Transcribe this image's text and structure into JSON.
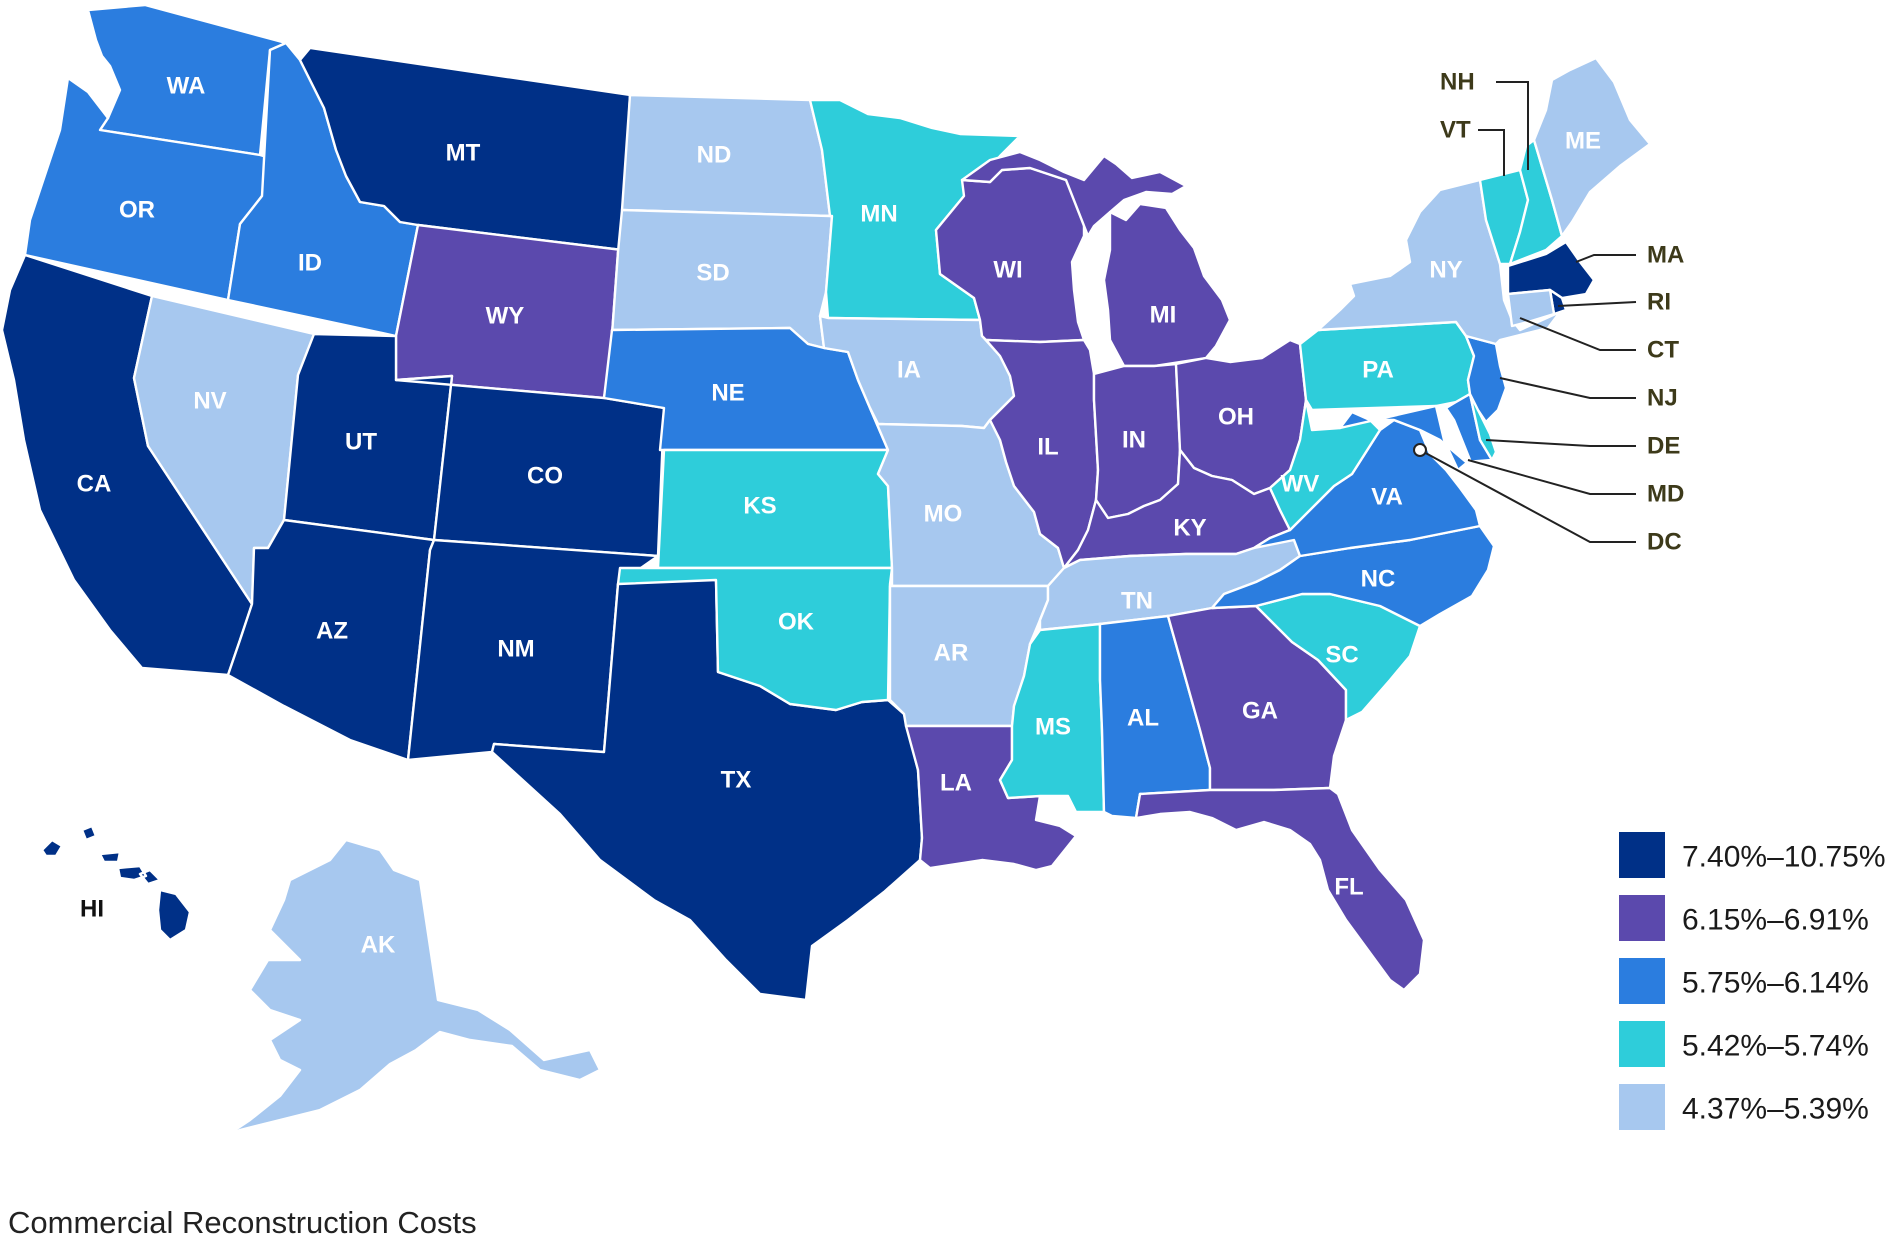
{
  "caption": "Commercial Reconstruction Costs",
  "colors": {
    "t1": "#003087",
    "t2": "#5b49ad",
    "t3": "#2b7ddf",
    "t4": "#2ecdda",
    "t5": "#a7c8ef",
    "border": "#ffffff"
  },
  "legend": [
    {
      "tier": "t1",
      "label": "7.40%–10.75%"
    },
    {
      "tier": "t2",
      "label": "6.15%–6.91%"
    },
    {
      "tier": "t3",
      "label": "5.75%–6.14%"
    },
    {
      "tier": "t4",
      "label": "5.42%–5.74%"
    },
    {
      "tier": "t5",
      "label": "4.37%–5.39%"
    }
  ],
  "states": {
    "WA": {
      "label": "WA",
      "tier": "t3"
    },
    "OR": {
      "label": "OR",
      "tier": "t3"
    },
    "CA": {
      "label": "CA",
      "tier": "t1"
    },
    "ID": {
      "label": "ID",
      "tier": "t3"
    },
    "NV": {
      "label": "NV",
      "tier": "t5"
    },
    "MT": {
      "label": "MT",
      "tier": "t1"
    },
    "WY": {
      "label": "WY",
      "tier": "t2"
    },
    "UT": {
      "label": "UT",
      "tier": "t1"
    },
    "CO": {
      "label": "CO",
      "tier": "t1"
    },
    "AZ": {
      "label": "AZ",
      "tier": "t1"
    },
    "NM": {
      "label": "NM",
      "tier": "t1"
    },
    "TX": {
      "label": "TX",
      "tier": "t1"
    },
    "ND": {
      "label": "ND",
      "tier": "t5"
    },
    "SD": {
      "label": "SD",
      "tier": "t5"
    },
    "NE": {
      "label": "NE",
      "tier": "t3"
    },
    "KS": {
      "label": "KS",
      "tier": "t4"
    },
    "OK": {
      "label": "OK",
      "tier": "t4"
    },
    "MN": {
      "label": "MN",
      "tier": "t4"
    },
    "IA": {
      "label": "IA",
      "tier": "t5"
    },
    "MO": {
      "label": "MO",
      "tier": "t5"
    },
    "AR": {
      "label": "AR",
      "tier": "t5"
    },
    "LA": {
      "label": "LA",
      "tier": "t2"
    },
    "WI": {
      "label": "WI",
      "tier": "t2"
    },
    "IL": {
      "label": "IL",
      "tier": "t2"
    },
    "MI": {
      "label": "MI",
      "tier": "t2"
    },
    "IN": {
      "label": "IN",
      "tier": "t2"
    },
    "OH": {
      "label": "OH",
      "tier": "t2"
    },
    "KY": {
      "label": "KY",
      "tier": "t2"
    },
    "TN": {
      "label": "TN",
      "tier": "t5"
    },
    "MS": {
      "label": "MS",
      "tier": "t4"
    },
    "AL": {
      "label": "AL",
      "tier": "t3"
    },
    "GA": {
      "label": "GA",
      "tier": "t2"
    },
    "FL": {
      "label": "FL",
      "tier": "t2"
    },
    "SC": {
      "label": "SC",
      "tier": "t4"
    },
    "NC": {
      "label": "NC",
      "tier": "t3"
    },
    "VA": {
      "label": "VA",
      "tier": "t3"
    },
    "WV": {
      "label": "WV",
      "tier": "t4"
    },
    "PA": {
      "label": "PA",
      "tier": "t4"
    },
    "NY": {
      "label": "NY",
      "tier": "t5"
    },
    "ME": {
      "label": "ME",
      "tier": "t5"
    },
    "VT": {
      "label": "VT",
      "tier": "t4"
    },
    "NH": {
      "label": "NH",
      "tier": "t4"
    },
    "MA": {
      "label": "MA",
      "tier": "t1"
    },
    "RI": {
      "label": "RI",
      "tier": "t1"
    },
    "CT": {
      "label": "CT",
      "tier": "t5"
    },
    "NJ": {
      "label": "NJ",
      "tier": "t3"
    },
    "DE": {
      "label": "DE",
      "tier": "t4"
    },
    "MD": {
      "label": "MD",
      "tier": "t3"
    },
    "DC": {
      "label": "DC",
      "tier": "t5"
    },
    "AK": {
      "label": "AK",
      "tier": "t5"
    },
    "HI": {
      "label": "HI",
      "tier": "t1"
    }
  }
}
